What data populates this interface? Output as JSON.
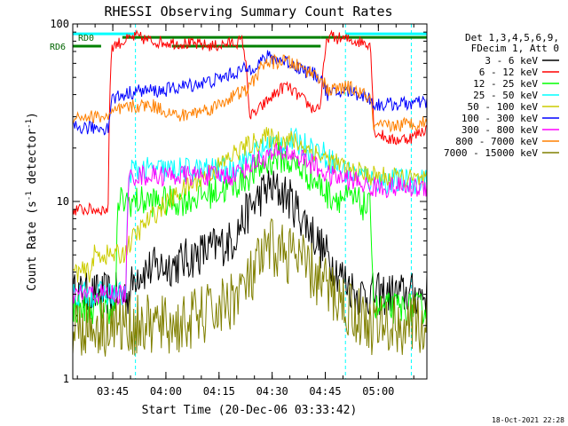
{
  "chart_data": {
    "type": "line",
    "title": "RHESSI Observing Summary Count Rates",
    "xlabel": "Start Time (20-Dec-06 03:33:42)",
    "ylabel_main": "Count Rate (s",
    "ylabel_sup": "-1",
    "ylabel_tail": " detector",
    "ylabel_close": ")",
    "yscale": "log",
    "xlim": [
      0,
      100
    ],
    "ylim": [
      1,
      100
    ],
    "x_ticks": [
      {
        "label": "03:45",
        "x": 11.3
      },
      {
        "label": "04:00",
        "x": 26.3
      },
      {
        "label": "04:15",
        "x": 41.3
      },
      {
        "label": "04:30",
        "x": 56.3
      },
      {
        "label": "04:45",
        "x": 71.3
      },
      {
        "label": "05:00",
        "x": 86.3
      }
    ],
    "y_ticks": [
      {
        "label": "1",
        "y": 1
      },
      {
        "label": "10",
        "y": 10
      },
      {
        "label": "100",
        "y": 100
      }
    ],
    "legend_position": "right",
    "legend_header": [
      "Det 1,3,4,5,6,9,",
      "FDecim 1, Att 0"
    ],
    "flag_labels": [
      {
        "name": "RD0",
        "y": 84
      },
      {
        "name": "RD6",
        "y": 75
      }
    ],
    "series": [
      {
        "name": "3 - 6 keV",
        "color": "#000000",
        "x": [
          0,
          16,
          18,
          30,
          45,
          50,
          55,
          60,
          65,
          70,
          75,
          80
        ],
        "y": [
          3,
          3,
          4,
          4.5,
          6,
          9,
          12,
          11,
          8,
          5.5,
          4,
          3
        ]
      },
      {
        "name": "6 - 12 keV",
        "color": "#ff0000",
        "x": [
          0,
          10,
          11,
          18,
          22,
          30,
          40,
          48,
          50,
          52,
          60,
          68,
          70,
          72,
          80,
          84,
          85,
          90,
          96,
          100
        ],
        "y": [
          9,
          9,
          75,
          85,
          80,
          78,
          75,
          80,
          30,
          32,
          45,
          33,
          35,
          85,
          80,
          78,
          25,
          22,
          23,
          26
        ]
      },
      {
        "name": "12 - 25 keV",
        "color": "#00ff00",
        "x": [
          0,
          12,
          13,
          20,
          30,
          45,
          52,
          58,
          65,
          72,
          80,
          84,
          85,
          100
        ],
        "y": [
          2.5,
          2.5,
          10,
          10,
          10,
          12,
          15,
          18,
          15,
          11,
          10,
          9,
          2.5,
          2.5
        ]
      },
      {
        "name": "25 - 50 keV",
        "color": "#00ffff",
        "x": [
          0,
          15,
          16,
          28,
          44,
          50,
          56,
          62,
          70,
          76,
          80,
          83,
          84,
          100
        ],
        "y": [
          3,
          3,
          15,
          15,
          15,
          18,
          21,
          22,
          19,
          15,
          14,
          14,
          13,
          13
        ]
      },
      {
        "name": "50 - 100 keV",
        "color": "#cccc00",
        "x": [
          0,
          5,
          6,
          10,
          14,
          40,
          48,
          55,
          62,
          70,
          78,
          84,
          100
        ],
        "y": [
          4,
          4,
          5,
          5,
          5,
          15,
          20,
          23,
          22,
          18,
          15,
          14,
          13
        ]
      },
      {
        "name": "100 - 300 keV",
        "color": "#0000ff",
        "x": [
          0,
          10,
          11,
          18,
          25,
          40,
          48,
          50,
          55,
          60,
          66,
          70,
          72,
          78,
          84,
          85,
          100
        ],
        "y": [
          26,
          26,
          38,
          42,
          42,
          48,
          55,
          56,
          65,
          62,
          54,
          50,
          40,
          42,
          38,
          35,
          36
        ]
      },
      {
        "name": "300 - 800 keV",
        "color": "#ff00ff",
        "x": [
          0,
          15,
          16,
          30,
          45,
          50,
          55,
          60,
          66,
          72,
          80,
          84,
          85,
          100
        ],
        "y": [
          3,
          3,
          14,
          14,
          14,
          16,
          18,
          19,
          17,
          14,
          13,
          12,
          12,
          12
        ]
      },
      {
        "name": "800 - 7000 keV",
        "color": "#ff8000",
        "x": [
          0,
          8,
          10,
          12,
          16,
          22,
          30,
          40,
          46,
          49,
          50,
          54,
          60,
          66,
          70,
          72,
          78,
          84,
          85,
          100
        ],
        "y": [
          30,
          30,
          30,
          32,
          34,
          35,
          30,
          34,
          40,
          42,
          44,
          60,
          62,
          55,
          50,
          42,
          44,
          38,
          26,
          28
        ]
      },
      {
        "name": "7000 - 15000 keV",
        "color": "#808000",
        "x": [
          0,
          14,
          20,
          30,
          42,
          50,
          56,
          62,
          70,
          78,
          84,
          85,
          100
        ],
        "y": [
          2,
          2,
          2,
          2,
          2.5,
          3.5,
          5.5,
          5,
          3.5,
          2.5,
          2,
          2,
          2
        ]
      }
    ]
  },
  "timestamp": "18-Oct-2021 22:28"
}
